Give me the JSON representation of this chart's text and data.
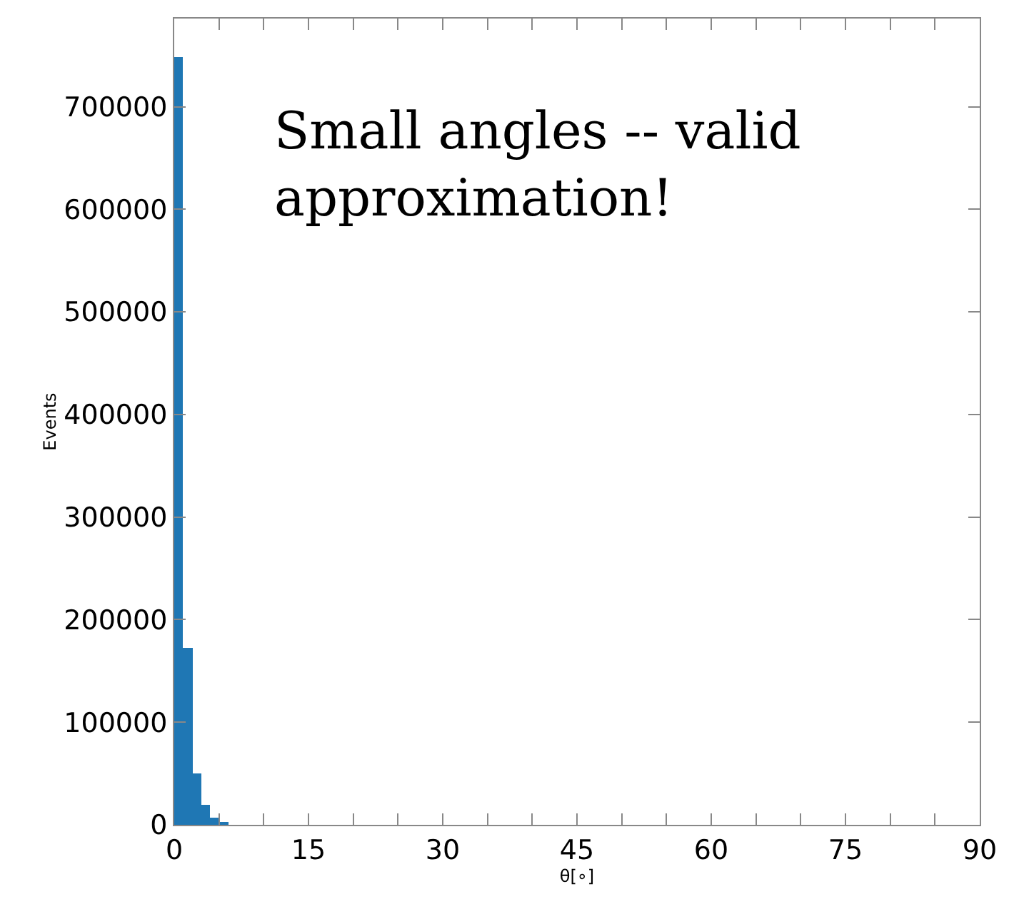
{
  "chart_data": {
    "type": "histogram",
    "xlabel": "θ[∘]",
    "ylabel": "Events",
    "bins": [
      0,
      1,
      2,
      3,
      4,
      5,
      6
    ],
    "values": [
      748000,
      173000,
      50000,
      19000,
      7000,
      2000
    ],
    "color": "#1f77b4",
    "xlim": [
      0,
      90
    ],
    "ylim": [
      0,
      786000
    ],
    "xticks": [
      0,
      {
        "value": 5,
        "label": null
      },
      {
        "value": 10,
        "label": null
      },
      15,
      {
        "value": 20,
        "label": null
      },
      {
        "value": 25,
        "label": null
      },
      30,
      {
        "value": 35,
        "label": null
      },
      {
        "value": 40,
        "label": null
      },
      45,
      {
        "value": 50,
        "label": null
      },
      {
        "value": 55,
        "label": null
      },
      60,
      {
        "value": 65,
        "label": null
      },
      {
        "value": 70,
        "label": null
      },
      75,
      {
        "value": 80,
        "label": null
      },
      {
        "value": 85,
        "label": null
      },
      90
    ],
    "yticks": [
      0,
      100000,
      200000,
      300000,
      400000,
      500000,
      600000,
      700000
    ],
    "annotations": [
      "Small angles -- valid approximation!"
    ]
  }
}
